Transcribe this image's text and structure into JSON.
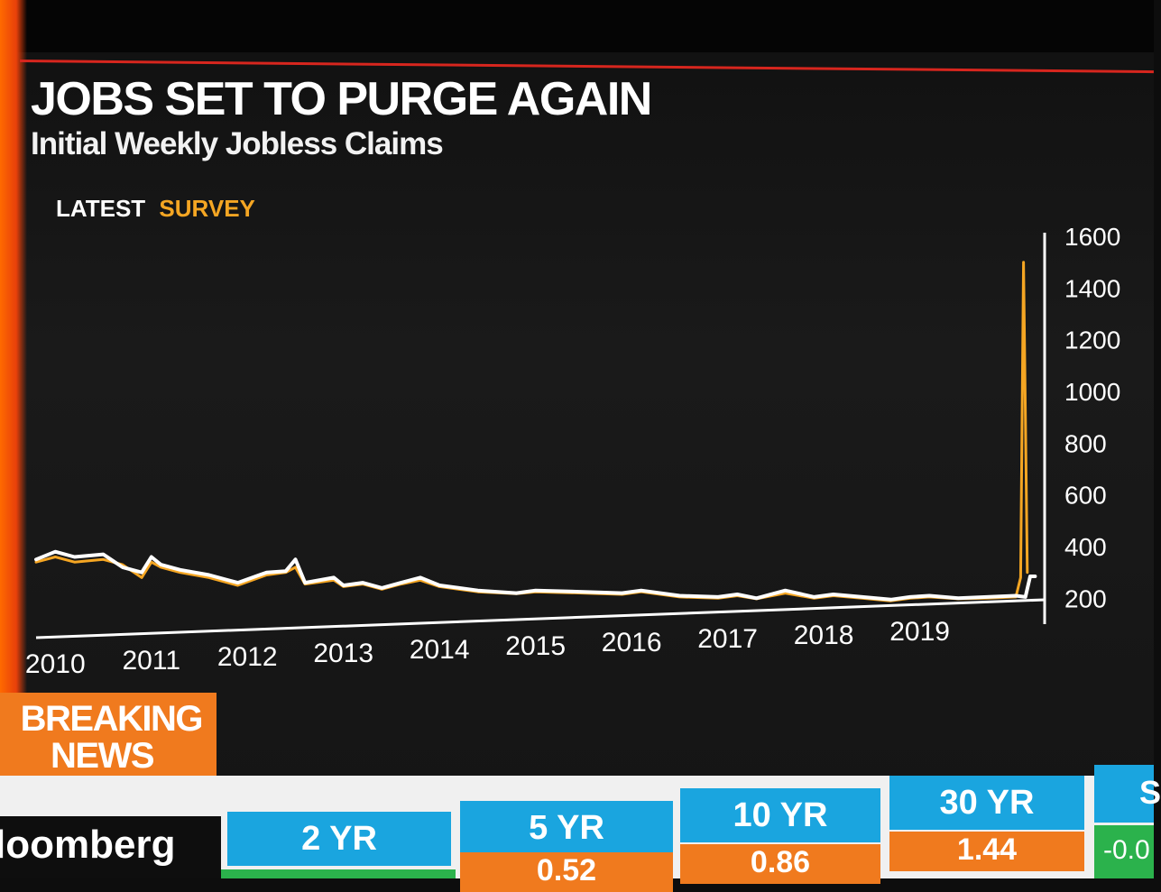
{
  "header": {
    "title": "JOBS SET TO PURGE AGAIN",
    "subtitle": "Initial Weekly Jobless Claims"
  },
  "legend": {
    "latest": "LATEST",
    "survey": "SURVEY"
  },
  "colors": {
    "latest": "#ffffff",
    "survey": "#f5a623",
    "accent_red": "#d7261e",
    "ticker_blue": "#1aa5df",
    "ticker_orange": "#f07a1e",
    "ticker_green": "#2bb24c"
  },
  "chart_data": {
    "type": "line",
    "title": "JOBS SET TO PURGE AGAIN",
    "subtitle": "Initial Weekly Jobless Claims",
    "ylim": [
      100,
      1600
    ],
    "y_ticks": [
      200,
      400,
      600,
      800,
      1000,
      1200,
      1400,
      1600
    ],
    "xlim": [
      2009.8,
      2020.3
    ],
    "x_ticks": [
      2010,
      2011,
      2012,
      2013,
      2014,
      2015,
      2016,
      2017,
      2018,
      2019
    ],
    "y_axis_position": "right",
    "grid": false,
    "legend_position": "top-left",
    "series": [
      {
        "name": "LATEST",
        "color": "#ffffff",
        "x": [
          2009.8,
          2010.0,
          2010.2,
          2010.5,
          2010.7,
          2010.9,
          2011.0,
          2011.1,
          2011.3,
          2011.6,
          2011.9,
          2012.2,
          2012.4,
          2012.5,
          2012.6,
          2012.9,
          2013.0,
          2013.2,
          2013.4,
          2013.6,
          2013.8,
          2014.0,
          2014.4,
          2014.8,
          2015.0,
          2015.5,
          2015.9,
          2016.1,
          2016.5,
          2016.9,
          2017.1,
          2017.3,
          2017.6,
          2017.9,
          2018.1,
          2018.4,
          2018.7,
          2018.9,
          2019.1,
          2019.4,
          2019.7,
          2020.0,
          2020.1,
          2020.15,
          2020.2
        ],
        "y": [
          350,
          380,
          360,
          370,
          320,
          300,
          360,
          330,
          310,
          290,
          260,
          300,
          305,
          350,
          260,
          280,
          250,
          260,
          240,
          260,
          280,
          250,
          230,
          220,
          230,
          225,
          220,
          230,
          210,
          205,
          215,
          200,
          230,
          205,
          215,
          205,
          195,
          205,
          210,
          200,
          205,
          210,
          205,
          285,
          285
        ]
      },
      {
        "name": "SURVEY",
        "color": "#f5a623",
        "x": [
          2009.8,
          2010.0,
          2010.2,
          2010.5,
          2010.7,
          2010.9,
          2011.0,
          2011.1,
          2011.3,
          2011.6,
          2011.9,
          2012.2,
          2012.4,
          2012.5,
          2012.6,
          2012.9,
          2013.0,
          2013.2,
          2013.4,
          2013.6,
          2013.8,
          2014.0,
          2014.4,
          2014.8,
          2015.0,
          2015.5,
          2015.9,
          2016.1,
          2016.5,
          2016.9,
          2017.1,
          2017.3,
          2017.6,
          2017.9,
          2018.1,
          2018.4,
          2018.7,
          2018.9,
          2019.1,
          2019.4,
          2019.7,
          2020.0,
          2020.05,
          2020.08,
          2020.12
        ],
        "y": [
          340,
          360,
          340,
          350,
          330,
          280,
          340,
          320,
          300,
          280,
          250,
          290,
          300,
          320,
          255,
          270,
          245,
          255,
          235,
          255,
          270,
          245,
          225,
          218,
          225,
          220,
          215,
          225,
          205,
          200,
          210,
          198,
          220,
          200,
          210,
          200,
          190,
          200,
          205,
          198,
          200,
          205,
          280,
          1500,
          300
        ]
      }
    ]
  },
  "breaking": {
    "line1": "BREAKING",
    "line2": "NEWS"
  },
  "ticker": {
    "brand": "loomberg",
    "items": [
      {
        "label": "2 YR",
        "value": ""
      },
      {
        "label": "5 YR",
        "value": "0.52"
      },
      {
        "label": "10 YR",
        "value": "0.86"
      },
      {
        "label": "30 YR",
        "value": "1.44"
      },
      {
        "label": "S",
        "value": "-0.0"
      }
    ]
  }
}
